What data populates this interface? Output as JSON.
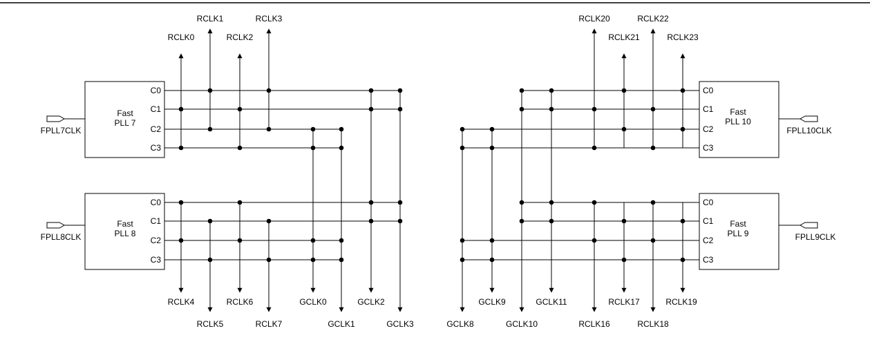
{
  "plls": {
    "pll7": {
      "label_line1": "Fast",
      "label_line2": "PLL 7",
      "input": "FPLL7CLK",
      "ports": [
        "C0",
        "C1",
        "C2",
        "C3"
      ]
    },
    "pll8": {
      "label_line1": "Fast",
      "label_line2": "PLL 8",
      "input": "FPLL8CLK",
      "ports": [
        "C0",
        "C1",
        "C2",
        "C3"
      ]
    },
    "pll10": {
      "label_line1": "Fast",
      "label_line2": "PLL 10",
      "input": "FPLL10CLK",
      "ports": [
        "C0",
        "C1",
        "C2",
        "C3"
      ]
    },
    "pll9": {
      "label_line1": "Fast",
      "label_line2": "PLL 9",
      "input": "FPLL9CLK",
      "ports": [
        "C0",
        "C1",
        "C2",
        "C3"
      ]
    }
  },
  "clocks": {
    "rclk0": "RCLK0",
    "rclk1": "RCLK1",
    "rclk2": "RCLK2",
    "rclk3": "RCLK3",
    "rclk4": "RCLK4",
    "rclk5": "RCLK5",
    "rclk6": "RCLK6",
    "rclk7": "RCLK7",
    "gclk0": "GCLK0",
    "gclk1": "GCLK1",
    "gclk2": "GCLK2",
    "gclk3": "GCLK3",
    "gclk8": "GCLK8",
    "gclk9": "GCLK9",
    "gclk10": "GCLK10",
    "gclk11": "GCLK11",
    "rclk16": "RCLK16",
    "rclk17": "RCLK17",
    "rclk18": "RCLK18",
    "rclk19": "RCLK19",
    "rclk20": "RCLK20",
    "rclk21": "RCLK21",
    "rclk22": "RCLK22",
    "rclk23": "RCLK23"
  }
}
